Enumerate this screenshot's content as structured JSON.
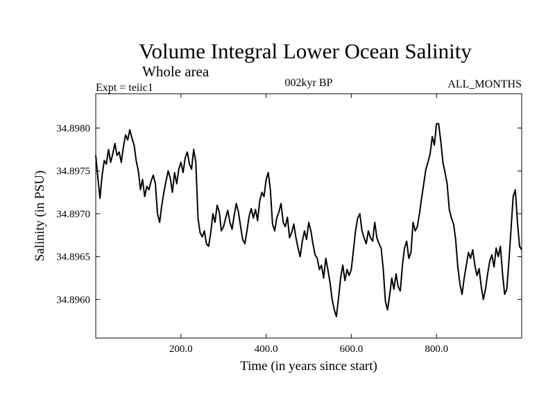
{
  "chart_data": {
    "type": "line",
    "title": "Volume Integral Lower Ocean Salinity",
    "subtitle": "Whole area",
    "experiment": "Expt = teiic1",
    "period": "002kyr BP",
    "months": "ALL_MONTHS",
    "xlabel": "Time (in years since start)",
    "ylabel": "Salinity (in PSU)",
    "xlim": [
      0,
      1000
    ],
    "ylim": [
      34.89555,
      34.8984
    ],
    "x_ticks": [
      200,
      400,
      600,
      800
    ],
    "x_tick_labels": [
      "200.0",
      "400.0",
      "600.0",
      "800.0"
    ],
    "y_ticks": [
      34.896,
      34.8965,
      34.897,
      34.8975,
      34.898
    ],
    "y_tick_labels": [
      "34.8960",
      "34.8965",
      "34.8970",
      "34.8975",
      "34.8980"
    ],
    "grid": false,
    "series": [
      {
        "color": "#000000",
        "x": [
          0,
          5,
          10,
          15,
          20,
          25,
          30,
          35,
          40,
          45,
          50,
          55,
          60,
          65,
          70,
          75,
          80,
          85,
          90,
          95,
          100,
          105,
          110,
          115,
          120,
          125,
          130,
          135,
          140,
          145,
          150,
          155,
          160,
          165,
          170,
          175,
          180,
          185,
          190,
          195,
          200,
          205,
          210,
          215,
          220,
          225,
          230,
          235,
          240,
          245,
          250,
          255,
          260,
          265,
          270,
          275,
          280,
          285,
          290,
          295,
          300,
          305,
          310,
          315,
          320,
          325,
          330,
          335,
          340,
          345,
          350,
          355,
          360,
          365,
          370,
          375,
          380,
          385,
          390,
          395,
          400,
          405,
          410,
          415,
          420,
          425,
          430,
          435,
          440,
          445,
          450,
          455,
          460,
          465,
          470,
          475,
          480,
          485,
          490,
          495,
          500,
          505,
          510,
          515,
          520,
          525,
          530,
          535,
          540,
          545,
          550,
          555,
          560,
          565,
          570,
          575,
          580,
          585,
          590,
          595,
          600,
          605,
          610,
          615,
          620,
          625,
          630,
          635,
          640,
          645,
          650,
          655,
          660,
          665,
          670,
          675,
          680,
          685,
          690,
          695,
          700,
          705,
          710,
          715,
          720,
          725,
          730,
          735,
          740,
          745,
          750,
          755,
          760,
          765,
          770,
          775,
          780,
          785,
          790,
          795,
          800,
          805,
          810,
          815,
          820,
          825,
          830,
          835,
          840,
          845,
          850,
          855,
          860,
          865,
          870,
          875,
          880,
          885,
          890,
          895,
          900,
          905,
          910,
          915,
          920,
          925,
          930,
          935,
          940,
          945,
          950,
          955,
          960,
          965,
          970,
          975,
          980,
          985,
          990,
          995,
          1000
        ],
        "y": [
          34.89768,
          34.89742,
          34.89718,
          34.89745,
          34.89762,
          34.89758,
          34.89775,
          34.8976,
          34.8977,
          34.89782,
          34.89768,
          34.89772,
          34.8976,
          34.89778,
          34.89792,
          34.89786,
          34.89798,
          34.89788,
          34.8978,
          34.89762,
          34.8975,
          34.89728,
          34.8974,
          34.8972,
          34.89732,
          34.89728,
          34.89738,
          34.89745,
          34.89735,
          34.897,
          34.8969,
          34.8971,
          34.89725,
          34.89738,
          34.8975,
          34.89742,
          34.89725,
          34.89748,
          34.89735,
          34.89752,
          34.8976,
          34.89748,
          34.89765,
          34.89772,
          34.89758,
          34.89752,
          34.89775,
          34.8976,
          34.89695,
          34.89678,
          34.89673,
          34.8968,
          34.89665,
          34.89662,
          34.89678,
          34.897,
          34.8969,
          34.8971,
          34.89702,
          34.8968,
          34.89685,
          34.89695,
          34.89704,
          34.8969,
          34.89682,
          34.89698,
          34.89712,
          34.89702,
          34.89685,
          34.8967,
          34.89665,
          34.8968,
          34.89697,
          34.89706,
          34.89695,
          34.89705,
          34.89692,
          34.89715,
          34.89725,
          34.8972,
          34.8974,
          34.89748,
          34.89728,
          34.89688,
          34.8968,
          34.89695,
          34.89702,
          34.89712,
          34.8969,
          34.89685,
          34.89696,
          34.89672,
          34.89678,
          34.89688,
          34.89672,
          34.8966,
          34.8965,
          34.89668,
          34.8968,
          34.8967,
          34.8969,
          34.8968,
          34.89665,
          34.89652,
          34.89648,
          34.89635,
          34.8964,
          34.89625,
          34.89648,
          34.89635,
          34.8962,
          34.896,
          34.89588,
          34.8958,
          34.89602,
          34.89625,
          34.8964,
          34.89622,
          34.89635,
          34.89628,
          34.89635,
          34.89658,
          34.8968,
          34.89695,
          34.897,
          34.8968,
          34.89672,
          34.89665,
          34.8968,
          34.89672,
          34.89668,
          34.8969,
          34.89672,
          34.89665,
          34.8966,
          34.89635,
          34.89598,
          34.89588,
          34.89605,
          34.89625,
          34.89612,
          34.8963,
          34.89615,
          34.8961,
          34.8964,
          34.8966,
          34.89668,
          34.89648,
          34.89655,
          34.8969,
          34.8968,
          34.89685,
          34.897,
          34.89718,
          34.89735,
          34.89752,
          34.8976,
          34.8977,
          34.8979,
          34.8978,
          34.89805,
          34.89805,
          34.89785,
          34.8976,
          34.89748,
          34.89735,
          34.89705,
          34.89695,
          34.89688,
          34.8967,
          34.89638,
          34.89618,
          34.89606,
          34.89625,
          34.8964,
          34.89655,
          34.89648,
          34.89658,
          34.8964,
          34.89628,
          34.89636,
          34.89615,
          34.896,
          34.89612,
          34.8963,
          34.89645,
          34.89652,
          34.89638,
          34.8966,
          34.8965,
          34.89662,
          34.8963,
          34.89606,
          34.89612,
          34.89645,
          34.89682,
          34.8972,
          34.89728,
          34.8969,
          34.89662,
          34.89658
        ]
      }
    ]
  }
}
